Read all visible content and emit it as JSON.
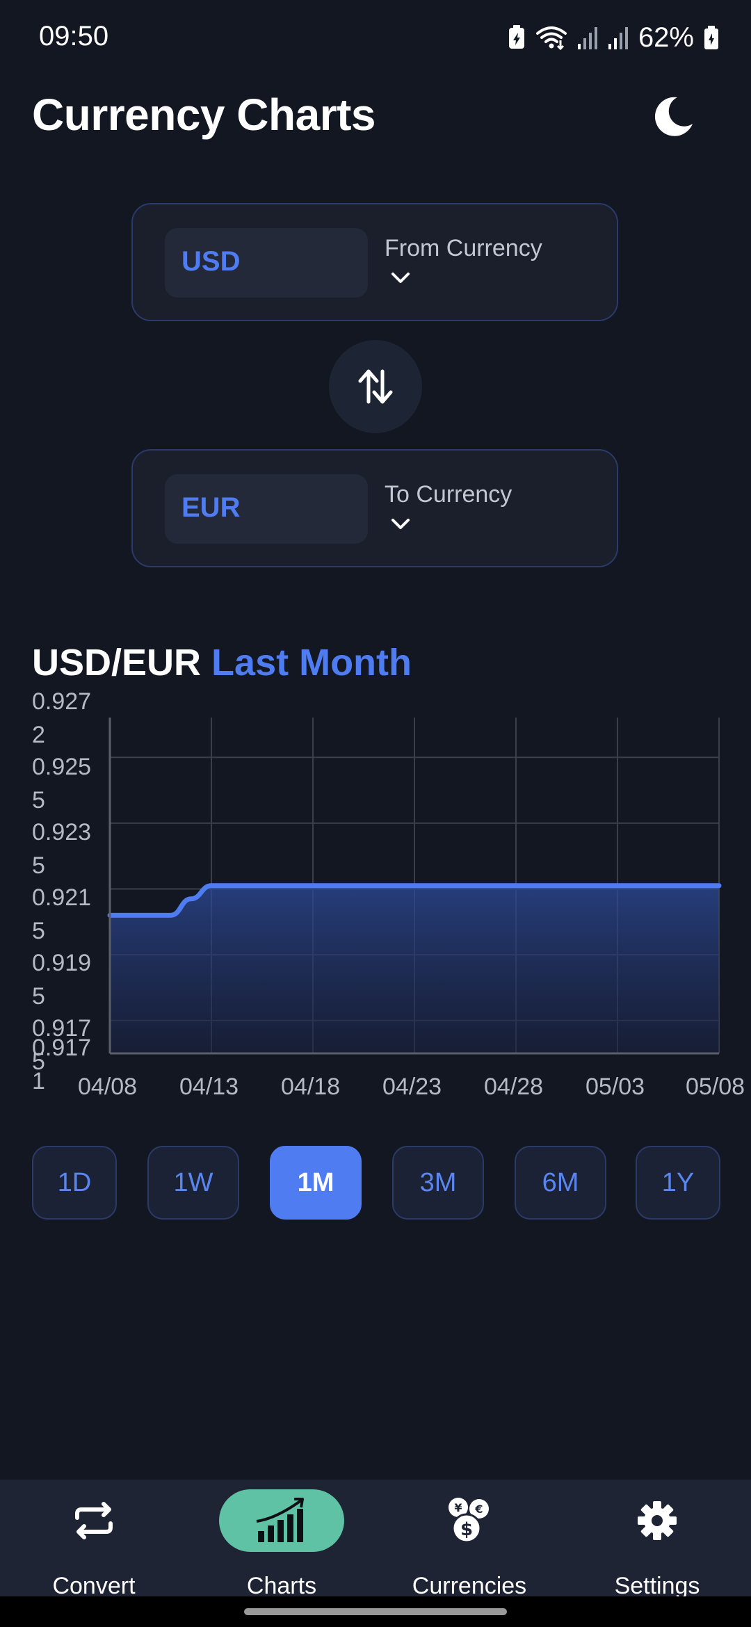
{
  "status_bar": {
    "time": "09:50",
    "battery": "62%",
    "icons": [
      "battery-saver-icon",
      "wifi-icon",
      "signal-icon",
      "signal-icon",
      "battery-icon"
    ]
  },
  "header": {
    "title": "Currency Charts",
    "theme_icon": "moon-icon"
  },
  "from_currency": {
    "code": "USD",
    "label": "From Currency"
  },
  "to_currency": {
    "code": "EUR",
    "label": "To Currency"
  },
  "swap_icon": "swap-vertical-icon",
  "chart_title": {
    "pair": "USD/EUR",
    "period": "Last Month"
  },
  "chart_data": {
    "type": "area",
    "x": [
      "04/08",
      "04/09",
      "04/10",
      "04/11",
      "04/12",
      "04/13",
      "04/14",
      "04/18",
      "04/23",
      "04/28",
      "05/03",
      "05/08"
    ],
    "series": [
      {
        "values": [
          0.9207,
          0.9207,
          0.9207,
          0.9207,
          0.9212,
          0.9216,
          0.9216,
          0.9216,
          0.9216,
          0.9216,
          0.9216,
          0.9216
        ]
      }
    ],
    "x_ticks": [
      "04/08",
      "04/13",
      "04/18",
      "04/23",
      "04/28",
      "05/03",
      "05/08"
    ],
    "y_ticks": [
      {
        "value": 0.9272,
        "line1": "0.927",
        "line2": "2"
      },
      {
        "value": 0.9255,
        "line1": "0.925",
        "line2": "5"
      },
      {
        "value": 0.9235,
        "line1": "0.923",
        "line2": "5"
      },
      {
        "value": 0.9215,
        "line1": "0.921",
        "line2": "5"
      },
      {
        "value": 0.9195,
        "line1": "0.919",
        "line2": "5"
      },
      {
        "value": 0.9175,
        "line1": "0.917",
        "line2": "5"
      },
      {
        "value": 0.9171,
        "line1": "0.917",
        "line2": "1"
      }
    ],
    "ylim": [
      0.9165,
      0.9265
    ],
    "grid": true,
    "line_color": "#4f7df1"
  },
  "ranges": [
    {
      "label": "1D",
      "active": false
    },
    {
      "label": "1W",
      "active": false
    },
    {
      "label": "1M",
      "active": true
    },
    {
      "label": "3M",
      "active": false
    },
    {
      "label": "6M",
      "active": false
    },
    {
      "label": "1Y",
      "active": false
    }
  ],
  "nav": [
    {
      "label": "Convert",
      "icon": "repeat-icon",
      "active": false
    },
    {
      "label": "Charts",
      "icon": "bar-chart-trend-icon",
      "active": true
    },
    {
      "label": "Currencies",
      "icon": "currency-coins-icon",
      "active": false
    },
    {
      "label": "Settings",
      "icon": "gear-icon",
      "active": false
    }
  ],
  "colors": {
    "background": "#131722",
    "accent": "#4f7df1",
    "nav_active": "#5fc2a4"
  }
}
